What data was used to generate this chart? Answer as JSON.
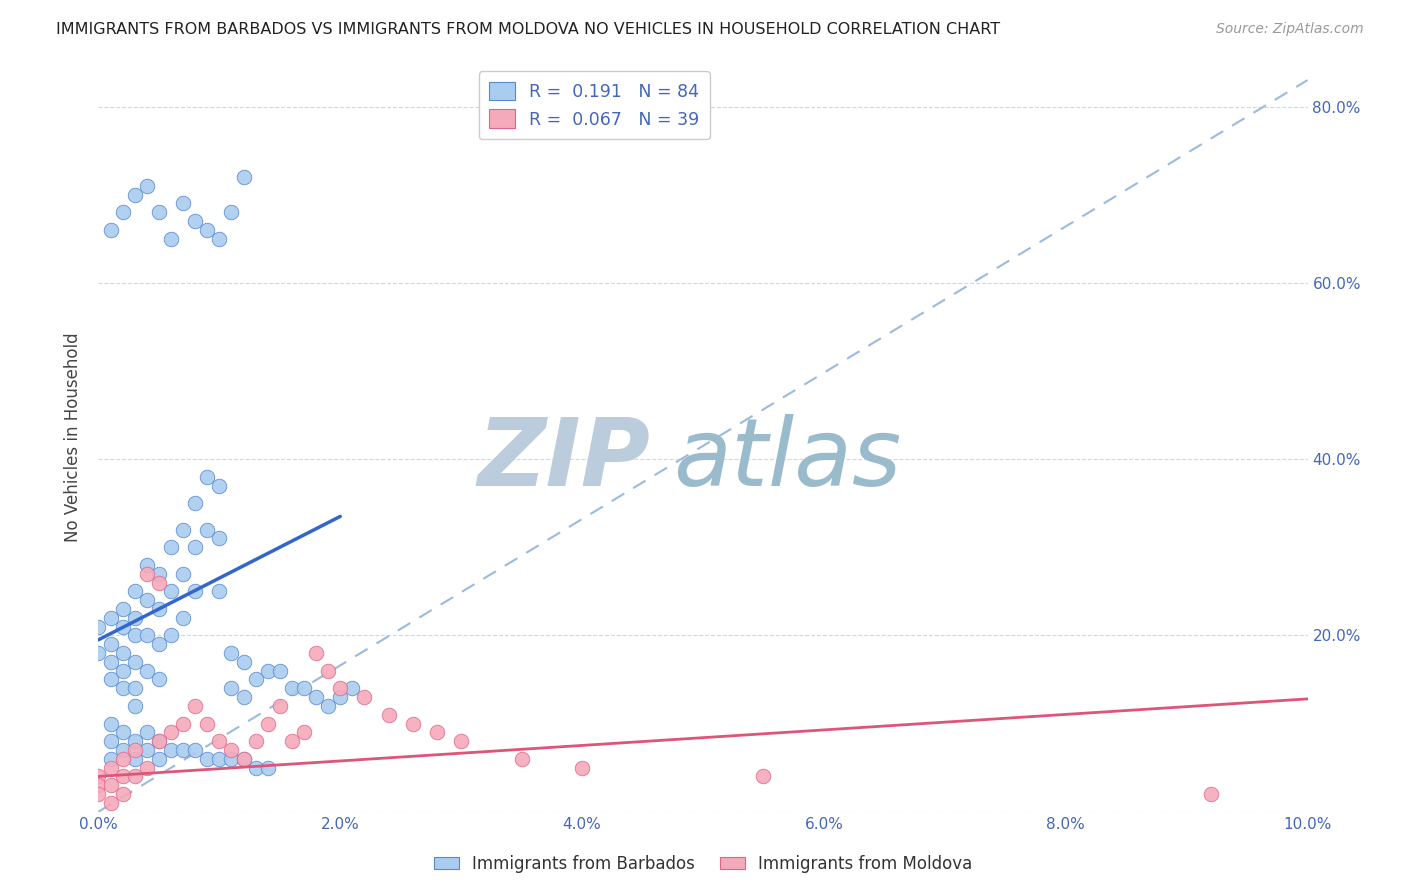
{
  "title": "IMMIGRANTS FROM BARBADOS VS IMMIGRANTS FROM MOLDOVA NO VEHICLES IN HOUSEHOLD CORRELATION CHART",
  "source": "Source: ZipAtlas.com",
  "ylabel": "No Vehicles in Household",
  "xlim": [
    0.0,
    0.1
  ],
  "ylim": [
    0.0,
    0.85
  ],
  "xticks": [
    0.0,
    0.02,
    0.04,
    0.06,
    0.08,
    0.1
  ],
  "yticks": [
    0.0,
    0.2,
    0.4,
    0.6,
    0.8
  ],
  "xticklabels": [
    "0.0%",
    "2.0%",
    "4.0%",
    "6.0%",
    "8.0%",
    "10.0%"
  ],
  "yticklabels_right": [
    "",
    "20.0%",
    "40.0%",
    "60.0%",
    "80.0%"
  ],
  "barbados_R": 0.191,
  "barbados_N": 84,
  "moldova_R": 0.067,
  "moldova_N": 39,
  "legend_label1": "Immigrants from Barbados",
  "legend_label2": "Immigrants from Moldova",
  "barbados_color": "#aaccf0",
  "barbados_edge_color": "#5588cc",
  "barbados_line_color": "#3366cc",
  "moldova_color": "#f5aabb",
  "moldova_edge_color": "#dd6688",
  "moldova_line_color": "#dd5577",
  "diagonal_line_color": "#99bbdd",
  "watermark_zip": "ZIP",
  "watermark_atlas": "atlas",
  "watermark_color_zip": "#bbccdd",
  "watermark_color_atlas": "#99bbcc",
  "background_color": "#ffffff",
  "tick_color": "#4466bb",
  "barbados_line_x0": 0.0,
  "barbados_line_y0": 0.195,
  "barbados_line_x1": 0.02,
  "barbados_line_y1": 0.335,
  "moldova_line_x0": 0.0,
  "moldova_line_y0": 0.04,
  "moldova_line_x1": 0.1,
  "moldova_line_y1": 0.128,
  "barbados_pts_x": [
    0.001,
    0.001,
    0.001,
    0.001,
    0.002,
    0.002,
    0.002,
    0.002,
    0.002,
    0.003,
    0.003,
    0.003,
    0.003,
    0.003,
    0.003,
    0.004,
    0.004,
    0.004,
    0.004,
    0.005,
    0.005,
    0.005,
    0.005,
    0.006,
    0.006,
    0.006,
    0.007,
    0.007,
    0.007,
    0.008,
    0.008,
    0.008,
    0.009,
    0.009,
    0.01,
    0.01,
    0.01,
    0.011,
    0.011,
    0.012,
    0.012,
    0.013,
    0.014,
    0.015,
    0.016,
    0.017,
    0.018,
    0.019,
    0.02,
    0.021,
    0.0,
    0.0,
    0.001,
    0.001,
    0.001,
    0.002,
    0.002,
    0.003,
    0.003,
    0.004,
    0.004,
    0.005,
    0.005,
    0.006,
    0.007,
    0.008,
    0.009,
    0.01,
    0.011,
    0.012,
    0.013,
    0.014,
    0.001,
    0.002,
    0.003,
    0.004,
    0.005,
    0.006,
    0.007,
    0.008,
    0.009,
    0.01,
    0.011,
    0.012
  ],
  "barbados_pts_y": [
    0.22,
    0.19,
    0.17,
    0.15,
    0.23,
    0.21,
    0.18,
    0.16,
    0.14,
    0.25,
    0.22,
    0.2,
    0.17,
    0.14,
    0.12,
    0.28,
    0.24,
    0.2,
    0.16,
    0.27,
    0.23,
    0.19,
    0.15,
    0.3,
    0.25,
    0.2,
    0.32,
    0.27,
    0.22,
    0.35,
    0.3,
    0.25,
    0.38,
    0.32,
    0.37,
    0.31,
    0.25,
    0.18,
    0.14,
    0.17,
    0.13,
    0.15,
    0.16,
    0.16,
    0.14,
    0.14,
    0.13,
    0.12,
    0.13,
    0.14,
    0.21,
    0.18,
    0.1,
    0.08,
    0.06,
    0.09,
    0.07,
    0.08,
    0.06,
    0.09,
    0.07,
    0.08,
    0.06,
    0.07,
    0.07,
    0.07,
    0.06,
    0.06,
    0.06,
    0.06,
    0.05,
    0.05,
    0.66,
    0.68,
    0.7,
    0.71,
    0.68,
    0.65,
    0.69,
    0.67,
    0.66,
    0.65,
    0.68,
    0.72
  ],
  "moldova_pts_x": [
    0.0,
    0.0,
    0.0,
    0.001,
    0.001,
    0.001,
    0.002,
    0.002,
    0.002,
    0.003,
    0.003,
    0.004,
    0.004,
    0.005,
    0.005,
    0.006,
    0.007,
    0.008,
    0.009,
    0.01,
    0.011,
    0.012,
    0.013,
    0.014,
    0.015,
    0.016,
    0.017,
    0.018,
    0.019,
    0.02,
    0.022,
    0.024,
    0.026,
    0.028,
    0.03,
    0.035,
    0.04,
    0.055,
    0.092
  ],
  "moldova_pts_y": [
    0.04,
    0.03,
    0.02,
    0.05,
    0.03,
    0.01,
    0.06,
    0.04,
    0.02,
    0.07,
    0.04,
    0.27,
    0.05,
    0.26,
    0.08,
    0.09,
    0.1,
    0.12,
    0.1,
    0.08,
    0.07,
    0.06,
    0.08,
    0.1,
    0.12,
    0.08,
    0.09,
    0.18,
    0.16,
    0.14,
    0.13,
    0.11,
    0.1,
    0.09,
    0.08,
    0.06,
    0.05,
    0.04,
    0.02
  ]
}
